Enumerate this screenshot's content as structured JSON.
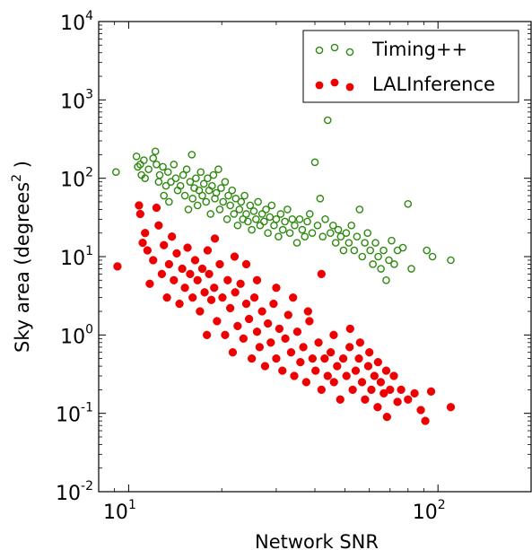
{
  "chart_data": {
    "type": "scatter",
    "title": "",
    "xlabel": "Network SNR",
    "ylabel": "Sky area (degrees",
    "ylabel_exponent": "2",
    "ylabel_suffix": " )",
    "x_scale": "log",
    "y_scale": "log",
    "xlim": [
      8,
      200
    ],
    "ylim": [
      0.01,
      10000
    ],
    "x_ticks": [
      {
        "value": 10,
        "base": "10",
        "exp": "1"
      },
      {
        "value": 100,
        "base": "10",
        "exp": "2"
      }
    ],
    "y_ticks": [
      {
        "value": 10000,
        "base": "10",
        "exp": "4"
      },
      {
        "value": 1000,
        "base": "10",
        "exp": "3"
      },
      {
        "value": 100,
        "base": "10",
        "exp": "2"
      },
      {
        "value": 10,
        "base": "10",
        "exp": "1"
      },
      {
        "value": 1,
        "base": "10",
        "exp": "0"
      },
      {
        "value": 0.1,
        "base": "10",
        "exp": "-1"
      },
      {
        "value": 0.01,
        "base": "10",
        "exp": "-2"
      }
    ],
    "legend_position": "top-right",
    "grid": false,
    "series": [
      {
        "name": "Timing++",
        "marker": "open-circle",
        "color": "#2d8a0f",
        "points": [
          [
            9.1,
            120
          ],
          [
            10.6,
            190
          ],
          [
            10.7,
            140
          ],
          [
            10.9,
            150
          ],
          [
            11.0,
            110
          ],
          [
            11.2,
            170
          ],
          [
            11.3,
            100
          ],
          [
            11.6,
            130
          ],
          [
            12.0,
            180
          ],
          [
            12.2,
            220
          ],
          [
            12.3,
            150
          ],
          [
            12.5,
            90
          ],
          [
            12.6,
            110
          ],
          [
            12.9,
            140
          ],
          [
            13.0,
            60
          ],
          [
            13.2,
            80
          ],
          [
            13.4,
            120
          ],
          [
            13.5,
            50
          ],
          [
            13.7,
            90
          ],
          [
            14.0,
            150
          ],
          [
            14.2,
            100
          ],
          [
            14.4,
            70
          ],
          [
            14.7,
            80
          ],
          [
            15.0,
            110
          ],
          [
            15.2,
            60
          ],
          [
            15.4,
            130
          ],
          [
            15.6,
            40
          ],
          [
            15.8,
            90
          ],
          [
            16.0,
            200
          ],
          [
            16.1,
            55
          ],
          [
            16.3,
            75
          ],
          [
            16.5,
            100
          ],
          [
            16.7,
            45
          ],
          [
            16.9,
            70
          ],
          [
            17.1,
            120
          ],
          [
            17.3,
            60
          ],
          [
            17.5,
            85
          ],
          [
            17.8,
            50
          ],
          [
            18.0,
            100
          ],
          [
            18.2,
            70
          ],
          [
            18.4,
            35
          ],
          [
            18.6,
            80
          ],
          [
            18.8,
            110
          ],
          [
            19.0,
            55
          ],
          [
            19.2,
            65
          ],
          [
            19.5,
            130
          ],
          [
            19.7,
            40
          ],
          [
            19.9,
            75
          ],
          [
            20.2,
            50
          ],
          [
            20.5,
            90
          ],
          [
            20.8,
            30
          ],
          [
            21.0,
            60
          ],
          [
            21.3,
            45
          ],
          [
            21.6,
            70
          ],
          [
            21.9,
            35
          ],
          [
            22.2,
            55
          ],
          [
            22.5,
            25
          ],
          [
            22.8,
            40
          ],
          [
            23.1,
            50
          ],
          [
            23.4,
            30
          ],
          [
            23.7,
            60
          ],
          [
            24.0,
            35
          ],
          [
            24.3,
            28
          ],
          [
            24.7,
            45
          ],
          [
            25.0,
            22
          ],
          [
            25.4,
            38
          ],
          [
            25.8,
            30
          ],
          [
            26.2,
            50
          ],
          [
            26.6,
            25
          ],
          [
            27.0,
            35
          ],
          [
            27.4,
            28
          ],
          [
            27.8,
            40
          ],
          [
            28.2,
            20
          ],
          [
            28.6,
            32
          ],
          [
            29.0,
            45
          ],
          [
            29.5,
            25
          ],
          [
            30.0,
            30
          ],
          [
            30.5,
            18
          ],
          [
            31.0,
            35
          ],
          [
            31.5,
            22
          ],
          [
            32.0,
            28
          ],
          [
            32.6,
            40
          ],
          [
            33.2,
            20
          ],
          [
            33.8,
            30
          ],
          [
            34.4,
            25
          ],
          [
            35.0,
            15
          ],
          [
            35.7,
            30
          ],
          [
            36.4,
            22
          ],
          [
            37.1,
            18
          ],
          [
            37.8,
            28
          ],
          [
            38.5,
            35
          ],
          [
            39.2,
            20
          ],
          [
            40.0,
            160
          ],
          [
            40.8,
            25
          ],
          [
            41.6,
            55
          ],
          [
            42.4,
            18
          ],
          [
            43.2,
            30
          ],
          [
            44.0,
            550
          ],
          [
            44.9,
            20
          ],
          [
            45.8,
            25
          ],
          [
            46.7,
            15
          ],
          [
            47.6,
            22
          ],
          [
            48.5,
            18
          ],
          [
            49.5,
            12
          ],
          [
            50.5,
            20
          ],
          [
            51.5,
            15
          ],
          [
            52.5,
            25
          ],
          [
            53.6,
            12
          ],
          [
            54.7,
            18
          ],
          [
            55.8,
            40
          ],
          [
            56.9,
            10
          ],
          [
            58.0,
            15
          ],
          [
            59.2,
            20
          ],
          [
            60.4,
            12
          ],
          [
            61.6,
            8
          ],
          [
            62.8,
            15
          ],
          [
            64.1,
            10
          ],
          [
            65.4,
            7
          ],
          [
            66.7,
            12
          ],
          [
            68.0,
            5
          ],
          [
            69.4,
            9
          ],
          [
            70.8,
            16
          ],
          [
            72.2,
            8
          ],
          [
            74.0,
            12
          ],
          [
            77.0,
            13
          ],
          [
            80.0,
            47
          ],
          [
            82.0,
            7
          ],
          [
            92.0,
            12
          ],
          [
            96.0,
            10
          ],
          [
            110.0,
            9
          ]
        ]
      },
      {
        "name": "LALInference",
        "marker": "filled-circle",
        "color": "#ee0000",
        "points": [
          [
            9.2,
            7.5
          ],
          [
            10.8,
            45
          ],
          [
            10.9,
            35
          ],
          [
            11.1,
            15
          ],
          [
            11.3,
            20
          ],
          [
            11.5,
            12
          ],
          [
            11.7,
            4.5
          ],
          [
            12.0,
            9
          ],
          [
            12.3,
            42
          ],
          [
            12.5,
            25
          ],
          [
            12.8,
            6
          ],
          [
            13.0,
            14
          ],
          [
            13.3,
            3
          ],
          [
            13.5,
            8
          ],
          [
            13.8,
            18
          ],
          [
            14.0,
            5
          ],
          [
            14.3,
            11
          ],
          [
            14.6,
            2.5
          ],
          [
            14.9,
            7
          ],
          [
            15.2,
            4
          ],
          [
            15.5,
            13
          ],
          [
            15.8,
            6
          ],
          [
            16.1,
            3
          ],
          [
            16.4,
            9
          ],
          [
            16.7,
            5
          ],
          [
            17.0,
            2
          ],
          [
            17.3,
            7
          ],
          [
            17.6,
            3.5
          ],
          [
            17.9,
            1
          ],
          [
            18.2,
            6
          ],
          [
            18.5,
            2.8
          ],
          [
            18.9,
            4
          ],
          [
            19.3,
            1.5
          ],
          [
            19.7,
            8
          ],
          [
            20.1,
            3
          ],
          [
            20.5,
            1
          ],
          [
            20.9,
            5
          ],
          [
            21.3,
            2.2
          ],
          [
            21.7,
            0.6
          ],
          [
            22.1,
            3.5
          ],
          [
            22.5,
            1.3
          ],
          [
            23.0,
            4.5
          ],
          [
            23.5,
            0.9
          ],
          [
            24.0,
            2.5
          ],
          [
            24.5,
            1.6
          ],
          [
            25.0,
            0.5
          ],
          [
            25.5,
            3
          ],
          [
            26.0,
            1.1
          ],
          [
            26.5,
            0.7
          ],
          [
            27.0,
            2
          ],
          [
            27.6,
            0.4
          ],
          [
            28.2,
            1.4
          ],
          [
            28.8,
            0.8
          ],
          [
            29.4,
            2.5
          ],
          [
            30.0,
            0.5
          ],
          [
            30.7,
            1.2
          ],
          [
            31.4,
            0.35
          ],
          [
            32.1,
            0.9
          ],
          [
            32.8,
            1.8
          ],
          [
            33.5,
            0.6
          ],
          [
            34.3,
            0.3
          ],
          [
            35.1,
            1.1
          ],
          [
            35.9,
            0.45
          ],
          [
            36.7,
            0.7
          ],
          [
            37.5,
            0.25
          ],
          [
            38.4,
            1.5
          ],
          [
            39.3,
            0.5
          ],
          [
            40.2,
            0.35
          ],
          [
            41.1,
            0.8
          ],
          [
            42.0,
            0.2
          ],
          [
            43.0,
            0.5
          ],
          [
            44.0,
            0.3
          ],
          [
            45.0,
            0.6
          ],
          [
            46.1,
            0.25
          ],
          [
            47.2,
            0.4
          ],
          [
            48.3,
            0.15
          ],
          [
            49.4,
            0.5
          ],
          [
            50.6,
            0.3
          ],
          [
            51.8,
            0.7
          ],
          [
            53.0,
            0.2
          ],
          [
            54.2,
            0.35
          ],
          [
            55.5,
            0.5
          ],
          [
            56.8,
            0.25
          ],
          [
            58.1,
            0.15
          ],
          [
            59.5,
            0.4
          ],
          [
            60.9,
            0.2
          ],
          [
            62.3,
            0.3
          ],
          [
            63.8,
            0.12
          ],
          [
            65.3,
            0.25
          ],
          [
            66.8,
            0.18
          ],
          [
            68.4,
            0.09
          ],
          [
            70.0,
            0.2
          ],
          [
            72.0,
            0.3
          ],
          [
            74.0,
            0.14
          ],
          [
            76.0,
            0.2
          ],
          [
            80.0,
            0.15
          ],
          [
            84.0,
            0.18
          ],
          [
            88.0,
            0.11
          ],
          [
            91.0,
            0.08
          ],
          [
            95.0,
            0.19
          ],
          [
            110.0,
            0.12
          ],
          [
            18.0,
            12
          ],
          [
            19.0,
            17
          ],
          [
            22.0,
            10
          ],
          [
            24.0,
            8
          ],
          [
            26.0,
            5
          ],
          [
            30.0,
            4
          ],
          [
            34.0,
            3
          ],
          [
            38.0,
            2
          ],
          [
            42.0,
            6
          ],
          [
            46.0,
            1
          ],
          [
            52.0,
            1.2
          ],
          [
            56.0,
            0.8
          ],
          [
            60.0,
            0.6
          ],
          [
            64.0,
            0.45
          ],
          [
            68.0,
            0.35
          ]
        ]
      }
    ]
  }
}
